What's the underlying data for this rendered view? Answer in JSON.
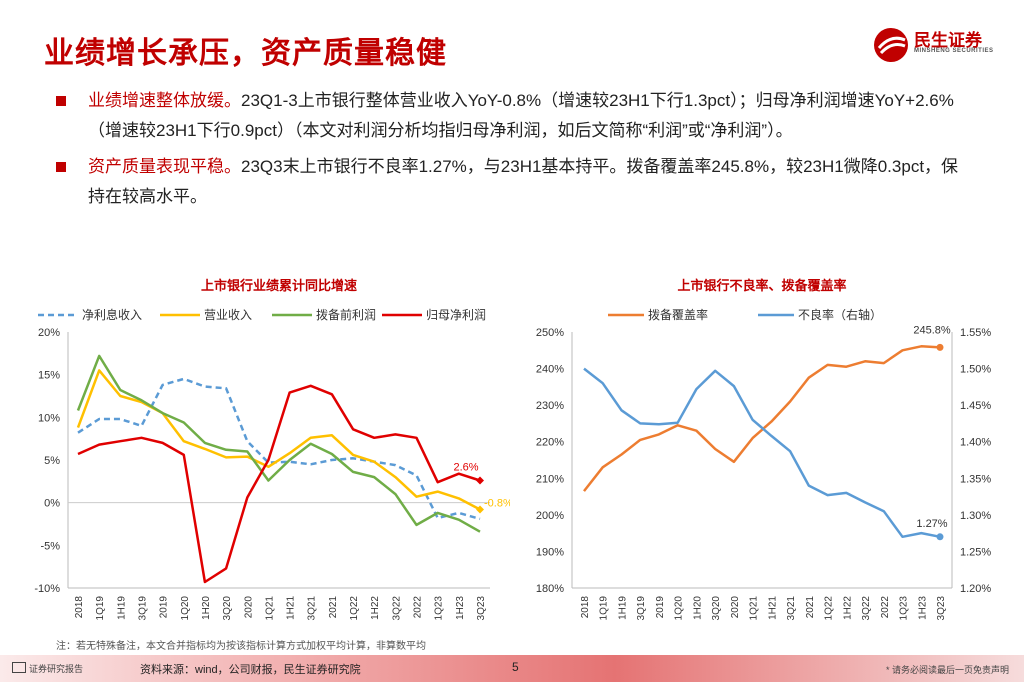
{
  "page": {
    "title": "业绩增长承压，资产质量稳健",
    "logo_cn": "民生证券",
    "logo_en": "MINSHENG SECURITIES",
    "colors": {
      "accent": "#c00000"
    }
  },
  "bullets": [
    {
      "highlight": "业绩增速整体放缓。",
      "text": "23Q1-3上市银行整体营业收入YoY-0.8%（增速较23H1下行1.3pct）；归母净利润增速YoY+2.6%（增速较23H1下行0.9pct）（本文对利润分析均指归母净利润，如后文简称“利润”或“净利润”）。"
    },
    {
      "highlight": "资产质量表现平稳。",
      "text": "23Q3末上市银行不良率1.27%，与23H1基本持平。拨备覆盖率245.8%，较23H1微降0.3pct，保持在较高水平。"
    }
  ],
  "footer": {
    "note": "注：若无特殊备注，本文合并指标均为按该指标计算方式加权平均计算，非算数平均",
    "report_label": "证券研究报告",
    "source": "资料来源：wind，公司财报，民生证券研究院",
    "page_number": "5",
    "disclaimer": "* 请务必阅读最后一页免责声明"
  },
  "chart_data": [
    {
      "type": "line",
      "title": "上市银行业绩累计同比增速",
      "categories": [
        "2018",
        "1Q19",
        "1H19",
        "3Q19",
        "2019",
        "1Q20",
        "1H20",
        "3Q20",
        "2020",
        "1Q21",
        "1H21",
        "3Q21",
        "2021",
        "1Q22",
        "1H22",
        "3Q22",
        "2022",
        "1Q23",
        "1H23",
        "3Q23"
      ],
      "y_tick_labels": [
        "20%",
        "15%",
        "10%",
        "5%",
        "0%",
        "-5%",
        "-10%"
      ],
      "ylim": [
        -10,
        20
      ],
      "y_ticks": [
        -10,
        -5,
        0,
        5,
        10,
        15,
        20
      ],
      "series": [
        {
          "name": "净利息收入",
          "color": "#5b9bd5",
          "dash": true,
          "values": [
            8.2,
            9.8,
            9.8,
            9.0,
            13.8,
            14.5,
            13.6,
            13.4,
            7.2,
            4.7,
            4.8,
            4.5,
            5.0,
            5.2,
            4.8,
            4.4,
            3.2,
            -1.8,
            -1.2,
            -1.9
          ]
        },
        {
          "name": "营业收入",
          "color": "#ffc000",
          "dash": false,
          "values": [
            8.8,
            15.5,
            12.5,
            11.8,
            10.5,
            7.2,
            6.3,
            5.3,
            5.4,
            4.2,
            5.8,
            7.6,
            7.9,
            5.6,
            4.8,
            3.0,
            0.7,
            1.3,
            0.5,
            -0.8
          ]
        },
        {
          "name": "拨备前利润",
          "color": "#70ad47",
          "dash": false,
          "values": [
            10.8,
            17.2,
            13.2,
            12.0,
            10.5,
            9.4,
            7.0,
            6.2,
            6.0,
            2.6,
            5.0,
            6.9,
            5.7,
            3.6,
            3.0,
            1.0,
            -2.6,
            -1.2,
            -2.0,
            -3.4
          ]
        },
        {
          "name": "归母净利润",
          "color": "#e00000",
          "dash": false,
          "values": [
            5.7,
            6.8,
            7.2,
            7.6,
            7.0,
            5.6,
            -9.3,
            -7.7,
            0.6,
            5.0,
            12.9,
            13.7,
            12.7,
            8.6,
            7.6,
            8.0,
            7.6,
            2.4,
            3.4,
            2.6
          ]
        }
      ],
      "annotations": [
        {
          "text": "2.6%",
          "series": "归母净利润"
        },
        {
          "text": "-0.8%",
          "series": "营业收入"
        }
      ]
    },
    {
      "type": "line",
      "title": "上市银行不良率、拨备覆盖率",
      "categories": [
        "2018",
        "1Q19",
        "1H19",
        "3Q19",
        "2019",
        "1Q20",
        "1H20",
        "3Q20",
        "2020",
        "1Q21",
        "1H21",
        "3Q21",
        "2021",
        "1Q22",
        "1H22",
        "3Q22",
        "2022",
        "1Q23",
        "1H23",
        "3Q23"
      ],
      "y_left_tick_labels": [
        "250%",
        "240%",
        "230%",
        "220%",
        "210%",
        "200%",
        "190%",
        "180%"
      ],
      "y_right_tick_labels": [
        "1.55%",
        "1.50%",
        "1.45%",
        "1.40%",
        "1.35%",
        "1.30%",
        "1.25%",
        "1.20%"
      ],
      "ylim_left": [
        180,
        250
      ],
      "ylim_right": [
        1.2,
        1.55
      ],
      "y_left_ticks": [
        180,
        190,
        200,
        210,
        220,
        230,
        240,
        250
      ],
      "y_right_ticks": [
        1.2,
        1.25,
        1.3,
        1.35,
        1.4,
        1.45,
        1.5,
        1.55
      ],
      "series": [
        {
          "name": "拨备覆盖率",
          "axis": "left",
          "color": "#ed7d31",
          "values": [
            206.5,
            213.0,
            216.5,
            220.5,
            222.0,
            224.5,
            223.0,
            218.0,
            214.5,
            221.0,
            225.5,
            231.0,
            237.5,
            241.0,
            240.5,
            242.0,
            241.5,
            245.0,
            246.1,
            245.8
          ]
        },
        {
          "name": "不良率（右轴）",
          "axis": "right",
          "color": "#5b9bd5",
          "values": [
            1.5,
            1.48,
            1.443,
            1.425,
            1.424,
            1.426,
            1.472,
            1.497,
            1.476,
            1.43,
            1.408,
            1.387,
            1.34,
            1.327,
            1.33,
            1.317,
            1.305,
            1.27,
            1.275,
            1.27
          ]
        }
      ],
      "annotations": [
        {
          "text": "245.8%",
          "series": "拨备覆盖率"
        },
        {
          "text": "1.27%",
          "series": "不良率（右轴）"
        }
      ]
    }
  ]
}
